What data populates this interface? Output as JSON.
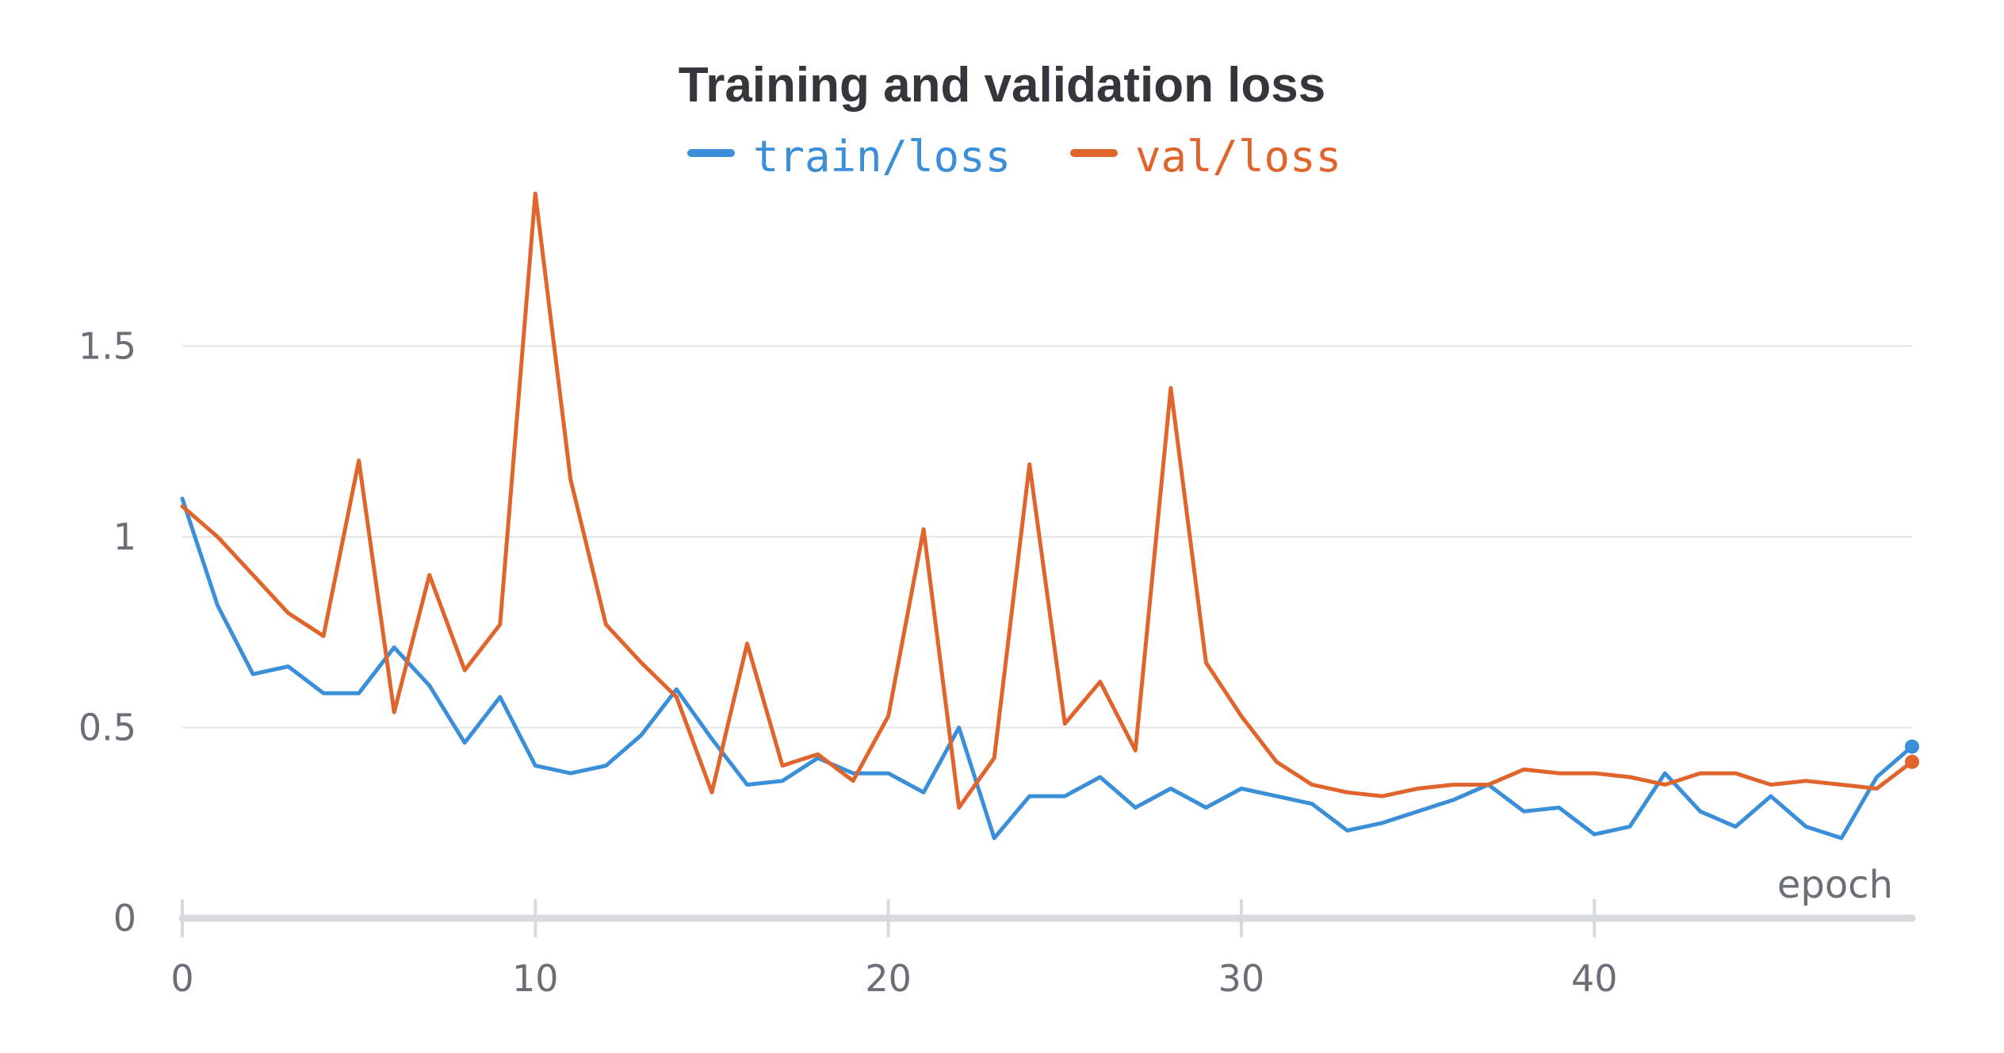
{
  "chart_data": {
    "type": "line",
    "title": "Training and validation loss",
    "xlabel": "epoch",
    "ylabel": "",
    "xlim": [
      0,
      49
    ],
    "ylim": [
      0,
      1.9
    ],
    "x_ticks": [
      0,
      10,
      20,
      30,
      40
    ],
    "y_ticks": [
      0,
      0.5,
      1,
      1.5
    ],
    "y_tick_labels": [
      "0",
      "0.5",
      "1",
      "1.5"
    ],
    "grid": true,
    "legend_position": "top-center",
    "series": [
      {
        "name": "train/loss",
        "color": "#3b8ed8",
        "values": [
          1.1,
          0.82,
          0.64,
          0.66,
          0.59,
          0.59,
          0.71,
          0.61,
          0.46,
          0.58,
          0.4,
          0.38,
          0.4,
          0.48,
          0.6,
          0.47,
          0.35,
          0.36,
          0.42,
          0.38,
          0.38,
          0.33,
          0.5,
          0.21,
          0.32,
          0.32,
          0.37,
          0.29,
          0.34,
          0.29,
          0.34,
          0.32,
          0.3,
          0.23,
          0.25,
          0.28,
          0.31,
          0.35,
          0.28,
          0.29,
          0.22,
          0.24,
          0.38,
          0.28,
          0.24,
          0.32,
          0.24,
          0.21,
          0.37,
          0.45
        ]
      },
      {
        "name": "val/loss",
        "color": "#e0652c",
        "values": [
          1.08,
          1.0,
          0.9,
          0.8,
          0.74,
          1.2,
          0.54,
          0.9,
          0.65,
          0.77,
          1.9,
          1.15,
          0.77,
          0.67,
          0.58,
          0.33,
          0.72,
          0.4,
          0.43,
          0.36,
          0.53,
          1.02,
          0.29,
          0.42,
          1.19,
          0.51,
          0.62,
          0.44,
          1.39,
          0.67,
          0.53,
          0.41,
          0.35,
          0.33,
          0.32,
          0.34,
          0.35,
          0.35,
          0.39,
          0.38,
          0.38,
          0.37,
          0.35,
          0.38,
          0.38,
          0.35,
          0.36,
          0.35,
          0.34,
          0.41
        ]
      }
    ]
  }
}
